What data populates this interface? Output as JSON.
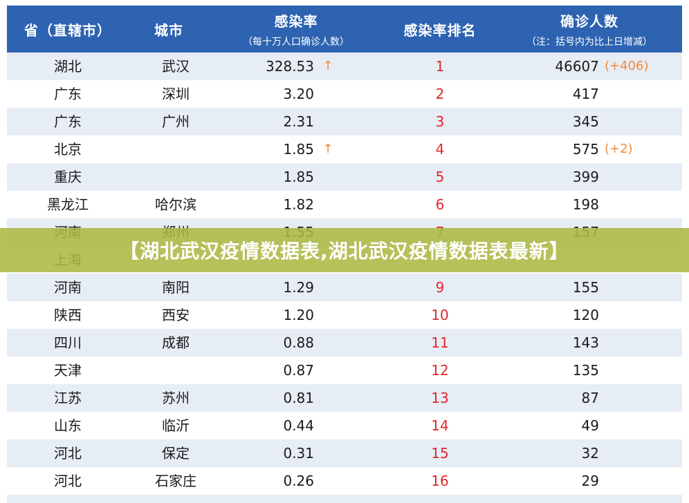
{
  "header": {
    "col_province": "省（直辖市）",
    "col_city": "城市",
    "col_rate": "感染率",
    "col_rate_sub": "（每十万人口确诊人数）",
    "col_rank": "感染率排名",
    "col_confirmed": "确诊人数",
    "col_confirmed_sub": "（注：括号内为比上日增减）"
  },
  "rows": [
    {
      "province": "湖北",
      "city": "武汉",
      "rate": "328.53",
      "arrow": "↑",
      "rank": "1",
      "confirmed": "46607",
      "increase": "(+406)"
    },
    {
      "province": "广东",
      "city": "深圳",
      "rate": "3.20",
      "arrow": "",
      "rank": "2",
      "confirmed": "417",
      "increase": ""
    },
    {
      "province": "广东",
      "city": "广州",
      "rate": "2.31",
      "arrow": "",
      "rank": "3",
      "confirmed": "345",
      "increase": ""
    },
    {
      "province": "北京",
      "city": "",
      "rate": "1.85",
      "arrow": "↑",
      "rank": "4",
      "confirmed": "575",
      "increase": "(+2)"
    },
    {
      "province": "重庆",
      "city": "",
      "rate": "1.85",
      "arrow": "",
      "rank": "5",
      "confirmed": "399",
      "increase": ""
    },
    {
      "province": "黑龙江",
      "city": "哈尔滨",
      "rate": "1.82",
      "arrow": "",
      "rank": "6",
      "confirmed": "198",
      "increase": ""
    },
    {
      "province": "河南",
      "city": "郑州",
      "rate": "1.55",
      "arrow": "",
      "rank": "7",
      "confirmed": "157",
      "increase": ""
    },
    {
      "province": "上海",
      "city": "",
      "rate": "",
      "arrow": "",
      "rank": "",
      "confirmed": "",
      "increase": ""
    },
    {
      "province": "河南",
      "city": "南阳",
      "rate": "1.29",
      "arrow": "",
      "rank": "9",
      "confirmed": "155",
      "increase": ""
    },
    {
      "province": "陕西",
      "city": "西安",
      "rate": "1.20",
      "arrow": "",
      "rank": "10",
      "confirmed": "120",
      "increase": ""
    },
    {
      "province": "四川",
      "city": "成都",
      "rate": "0.88",
      "arrow": "",
      "rank": "11",
      "confirmed": "143",
      "increase": ""
    },
    {
      "province": "天津",
      "city": "",
      "rate": "0.87",
      "arrow": "",
      "rank": "12",
      "confirmed": "135",
      "increase": ""
    },
    {
      "province": "江苏",
      "city": "苏州",
      "rate": "0.81",
      "arrow": "",
      "rank": "13",
      "confirmed": "87",
      "increase": ""
    },
    {
      "province": "山东",
      "city": "临沂",
      "rate": "0.44",
      "arrow": "",
      "rank": "14",
      "confirmed": "49",
      "increase": ""
    },
    {
      "province": "河北",
      "city": "保定",
      "rate": "0.31",
      "arrow": "",
      "rank": "15",
      "confirmed": "32",
      "increase": ""
    },
    {
      "province": "河北",
      "city": "石家庄",
      "rate": "0.26",
      "arrow": "",
      "rank": "16",
      "confirmed": "29",
      "increase": ""
    }
  ],
  "banner": {
    "text": "【湖北武汉疫情数据表,湖北武汉疫情数据表最新】"
  },
  "colors": {
    "header_bg": "#2d63b0",
    "rank_red": "#e0262a",
    "increase_orange": "#f08a3a",
    "row_shade": "#e7edf5",
    "banner_bg": "#acb842"
  }
}
